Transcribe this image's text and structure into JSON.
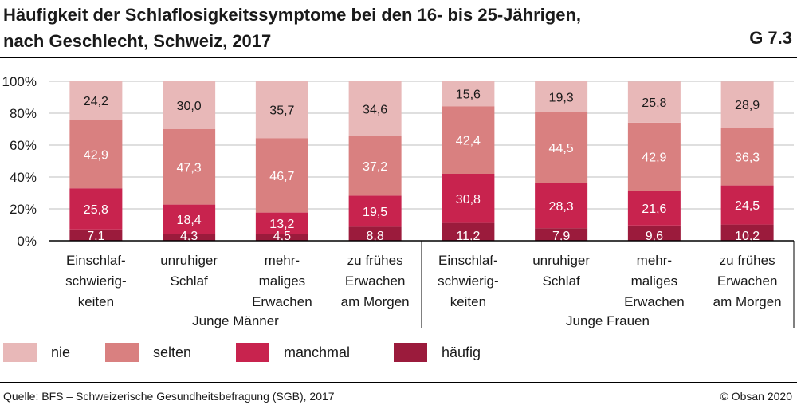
{
  "header": {
    "title_line1": "Häufigkeit der Schlaflosigkeitssymptome bei den 16- bis 25-Jährigen,",
    "title_line2": "nach Geschlecht, Schweiz, 2017",
    "figure_id": "G 7.3"
  },
  "footer": {
    "source": "Quelle: BFS – Schweizerische Gesundheitsbefragung (SGB), 2017",
    "copyright": "© Obsan 2020"
  },
  "colors": {
    "nie": "#e8b8b8",
    "selten": "#d98080",
    "manchmal": "#c8234e",
    "haeufig": "#9b1b3c",
    "axis": "#000000",
    "grid": "#bfbfbf"
  },
  "chart_data": {
    "type": "bar",
    "stacked": true,
    "title": "Häufigkeit der Schlaflosigkeitssymptome bei den 16- bis 25-Jährigen, nach Geschlecht, Schweiz, 2017",
    "ylabel": "",
    "ylim": [
      0,
      100
    ],
    "yticks": [
      "0%",
      "20%",
      "40%",
      "60%",
      "80%",
      "100%"
    ],
    "groups": [
      {
        "label": "Junge Männer",
        "categories": [
          [
            "Einschlaf-",
            "schwierig-",
            "keiten"
          ],
          [
            "unruhiger",
            "Schlaf"
          ],
          [
            "mehr-",
            "maliges",
            "Erwachen"
          ],
          [
            "zu frühes",
            "Erwachen",
            "am Morgen"
          ]
        ]
      },
      {
        "label": "Junge Frauen",
        "categories": [
          [
            "Einschlaf-",
            "schwierig-",
            "keiten"
          ],
          [
            "unruhiger",
            "Schlaf"
          ],
          [
            "mehr-",
            "maliges",
            "Erwachen"
          ],
          [
            "zu frühes",
            "Erwachen",
            "am Morgen"
          ]
        ]
      }
    ],
    "series": [
      {
        "name": "häufig",
        "key": "haeufig",
        "values": [
          7.1,
          4.3,
          4.5,
          8.8,
          11.2,
          7.9,
          9.6,
          10.2
        ]
      },
      {
        "name": "manchmal",
        "key": "manchmal",
        "values": [
          25.8,
          18.4,
          13.2,
          19.5,
          30.8,
          28.3,
          21.6,
          24.5
        ]
      },
      {
        "name": "selten",
        "key": "selten",
        "values": [
          42.9,
          47.3,
          46.7,
          37.2,
          42.4,
          44.5,
          42.9,
          36.3
        ]
      },
      {
        "name": "nie",
        "key": "nie",
        "values": [
          24.2,
          30.0,
          35.7,
          34.6,
          15.6,
          19.3,
          25.8,
          28.9
        ]
      }
    ],
    "legend": [
      {
        "name": "nie",
        "key": "nie"
      },
      {
        "name": "selten",
        "key": "selten"
      },
      {
        "name": "manchmal",
        "key": "manchmal"
      },
      {
        "name": "häufig",
        "key": "haeufig"
      }
    ],
    "legend_position": "bottom"
  }
}
